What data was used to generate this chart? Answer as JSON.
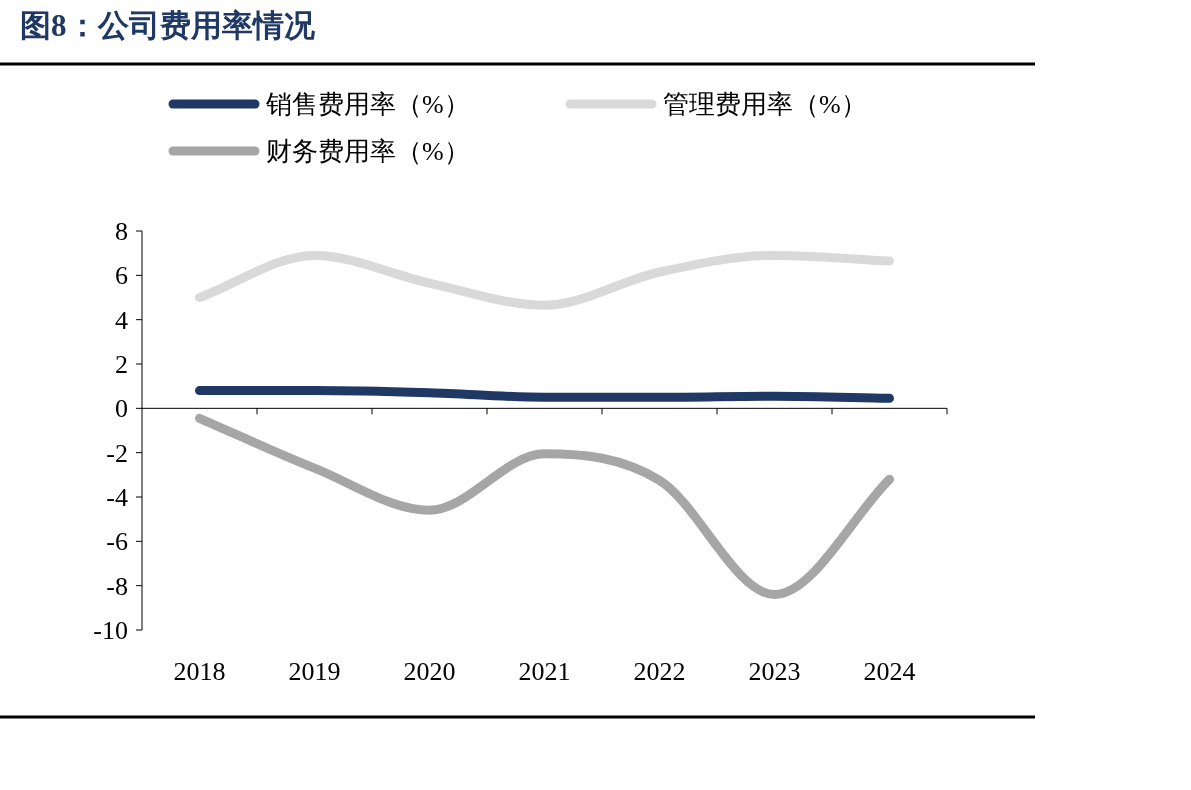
{
  "chart_data": {
    "type": "line",
    "title": "图8：公司费用率情况",
    "categories": [
      "2018",
      "2019",
      "2020",
      "2021",
      "2022",
      "2023",
      "2024"
    ],
    "series": [
      {
        "name": "销售费用率（%）",
        "color": "#1f3864",
        "values": [
          0.8,
          0.8,
          0.7,
          0.5,
          0.5,
          0.55,
          0.45
        ]
      },
      {
        "name": "管理费用率（%）",
        "color": "#d9d9d9",
        "values": [
          5.0,
          6.9,
          5.65,
          4.65,
          6.15,
          6.9,
          6.65
        ]
      },
      {
        "name": "财务费用率（%）",
        "color": "#a6a6a6",
        "values": [
          -0.45,
          -2.7,
          -4.6,
          -2.05,
          -3.25,
          -8.4,
          -3.2
        ]
      }
    ],
    "ylim": [
      -10,
      8
    ],
    "yticks": [
      -10,
      -8,
      -6,
      -4,
      -2,
      0,
      2,
      4,
      6,
      8
    ],
    "legend": "top"
  }
}
